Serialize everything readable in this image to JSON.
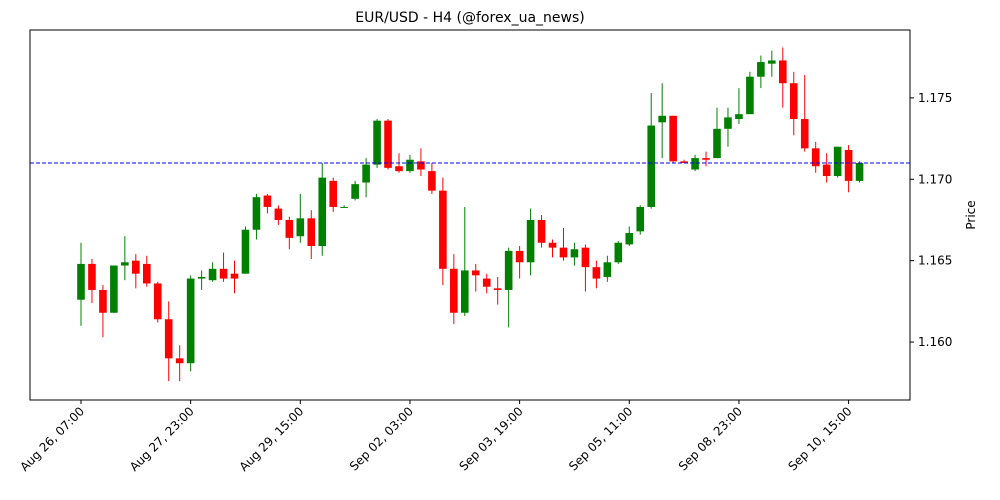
{
  "chart_data": {
    "type": "candlestick",
    "title": "EUR/USD - H4 (@forex_ua_news)",
    "ylabel": "Price",
    "categories": [
      "Aug 26, 07:00",
      null,
      null,
      null,
      null,
      null,
      null,
      null,
      null,
      null,
      "Aug 27, 23:00",
      null,
      null,
      null,
      null,
      null,
      null,
      null,
      null,
      null,
      "Aug 29, 15:00",
      null,
      null,
      null,
      null,
      null,
      null,
      null,
      null,
      null,
      "Sep 02, 03:00",
      null,
      null,
      null,
      null,
      null,
      null,
      null,
      null,
      null,
      "Sep 03, 19:00",
      null,
      null,
      null,
      null,
      null,
      null,
      null,
      null,
      null,
      "Sep 05, 11:00",
      null,
      null,
      null,
      null,
      null,
      null,
      null,
      null,
      null,
      "Sep 08, 23:00",
      null,
      null,
      null,
      null,
      null,
      null,
      null,
      null,
      null,
      "Sep 10, 15:00",
      null
    ],
    "open": [
      1.1626,
      1.1648,
      1.1632,
      1.1618,
      1.1647,
      1.165,
      1.1648,
      1.1636,
      1.1614,
      1.159,
      1.1587,
      1.1639,
      1.1638,
      1.1645,
      1.1642,
      1.1642,
      1.1669,
      1.169,
      1.1682,
      1.1675,
      1.1665,
      1.1676,
      1.1659,
      1.1699,
      1.1683,
      1.1688,
      1.1698,
      1.1709,
      1.1736,
      1.1708,
      1.1705,
      1.1711,
      1.1705,
      1.1693,
      1.1645,
      1.1618,
      1.1644,
      1.1639,
      1.1633,
      1.1632,
      1.1656,
      1.1649,
      1.1675,
      1.1661,
      1.1658,
      1.1652,
      1.1658,
      1.1646,
      1.164,
      1.1649,
      1.166,
      1.1668,
      1.1683,
      1.1735,
      1.1739,
      1.1711,
      1.1706,
      1.1713,
      1.1713,
      1.1731,
      1.1737,
      1.174,
      1.1763,
      1.1771,
      1.1773,
      1.1759,
      1.1737,
      1.1719,
      1.1709,
      1.1702,
      1.1718,
      1.1699
    ],
    "high": [
      1.1661,
      1.1651,
      1.1635,
      1.1647,
      1.1665,
      1.1654,
      1.1653,
      1.1637,
      1.1625,
      1.1598,
      1.1641,
      1.1644,
      1.1649,
      1.1655,
      1.165,
      1.1671,
      1.1691,
      1.1691,
      1.1684,
      1.1677,
      1.1691,
      1.1681,
      1.171,
      1.1701,
      1.1684,
      1.1699,
      1.1713,
      1.1737,
      1.1737,
      1.1716,
      1.1715,
      1.1719,
      1.171,
      1.1701,
      1.1654,
      1.1683,
      1.1648,
      1.1642,
      1.164,
      1.1658,
      1.1659,
      1.1682,
      1.1678,
      1.1663,
      1.167,
      1.1661,
      1.166,
      1.165,
      1.1653,
      1.1662,
      1.1671,
      1.1684,
      1.1753,
      1.1759,
      1.1739,
      1.1712,
      1.1715,
      1.1717,
      1.1744,
      1.1744,
      1.1756,
      1.1766,
      1.1776,
      1.1779,
      1.1781,
      1.1766,
      1.1764,
      1.1723,
      1.1716,
      1.172,
      1.1721,
      1.1711
    ],
    "low": [
      1.161,
      1.1624,
      1.1603,
      1.1618,
      1.1638,
      1.1633,
      1.1634,
      1.1612,
      1.1576,
      1.1576,
      1.1582,
      1.1632,
      1.1637,
      1.1637,
      1.163,
      1.1642,
      1.1663,
      1.1679,
      1.1672,
      1.1657,
      1.1661,
      1.1651,
      1.1653,
      1.168,
      1.1683,
      1.1687,
      1.1689,
      1.1707,
      1.1706,
      1.1704,
      1.1704,
      1.1702,
      1.1691,
      1.1635,
      1.1611,
      1.1616,
      1.1631,
      1.163,
      1.1623,
      1.1609,
      1.1639,
      1.1641,
      1.1658,
      1.1652,
      1.165,
      1.1647,
      1.1631,
      1.1633,
      1.1637,
      1.1648,
      1.1659,
      1.1666,
      1.1682,
      1.1713,
      1.171,
      1.171,
      1.1705,
      1.1708,
      1.1713,
      1.172,
      1.1734,
      1.1741,
      1.1756,
      1.1763,
      1.1744,
      1.1727,
      1.1717,
      1.1704,
      1.1698,
      1.1701,
      1.1692,
      1.1698
    ],
    "close": [
      1.1648,
      1.1632,
      1.1618,
      1.1647,
      1.1649,
      1.1642,
      1.1636,
      1.1614,
      1.159,
      1.1587,
      1.1639,
      1.164,
      1.1645,
      1.1639,
      1.1639,
      1.1669,
      1.1689,
      1.1683,
      1.1675,
      1.1664,
      1.1676,
      1.1659,
      1.1701,
      1.1683,
      1.1683,
      1.1697,
      1.1709,
      1.1736,
      1.1707,
      1.1705,
      1.1712,
      1.1706,
      1.1693,
      1.1645,
      1.1618,
      1.1644,
      1.1641,
      1.1634,
      1.1632,
      1.1656,
      1.1649,
      1.1675,
      1.1661,
      1.1658,
      1.1652,
      1.1657,
      1.1646,
      1.1639,
      1.1649,
      1.1661,
      1.1667,
      1.1683,
      1.1733,
      1.1739,
      1.1711,
      1.171,
      1.1713,
      1.1712,
      1.1731,
      1.1738,
      1.174,
      1.1763,
      1.1772,
      1.1773,
      1.1759,
      1.1737,
      1.1719,
      1.1708,
      1.1702,
      1.172,
      1.1699,
      1.171
    ],
    "up_color": "#008000",
    "down_color": "#ff0000",
    "ylim": [
      1.15644,
      1.17917
    ],
    "yticks": [
      {
        "value": 1.16,
        "label": "1.160"
      },
      {
        "value": 1.165,
        "label": "1.165"
      },
      {
        "value": 1.17,
        "label": "1.170"
      },
      {
        "value": 1.175,
        "label": "1.175"
      }
    ],
    "hline": {
      "value": 1.171,
      "color": "#0000ff"
    }
  }
}
